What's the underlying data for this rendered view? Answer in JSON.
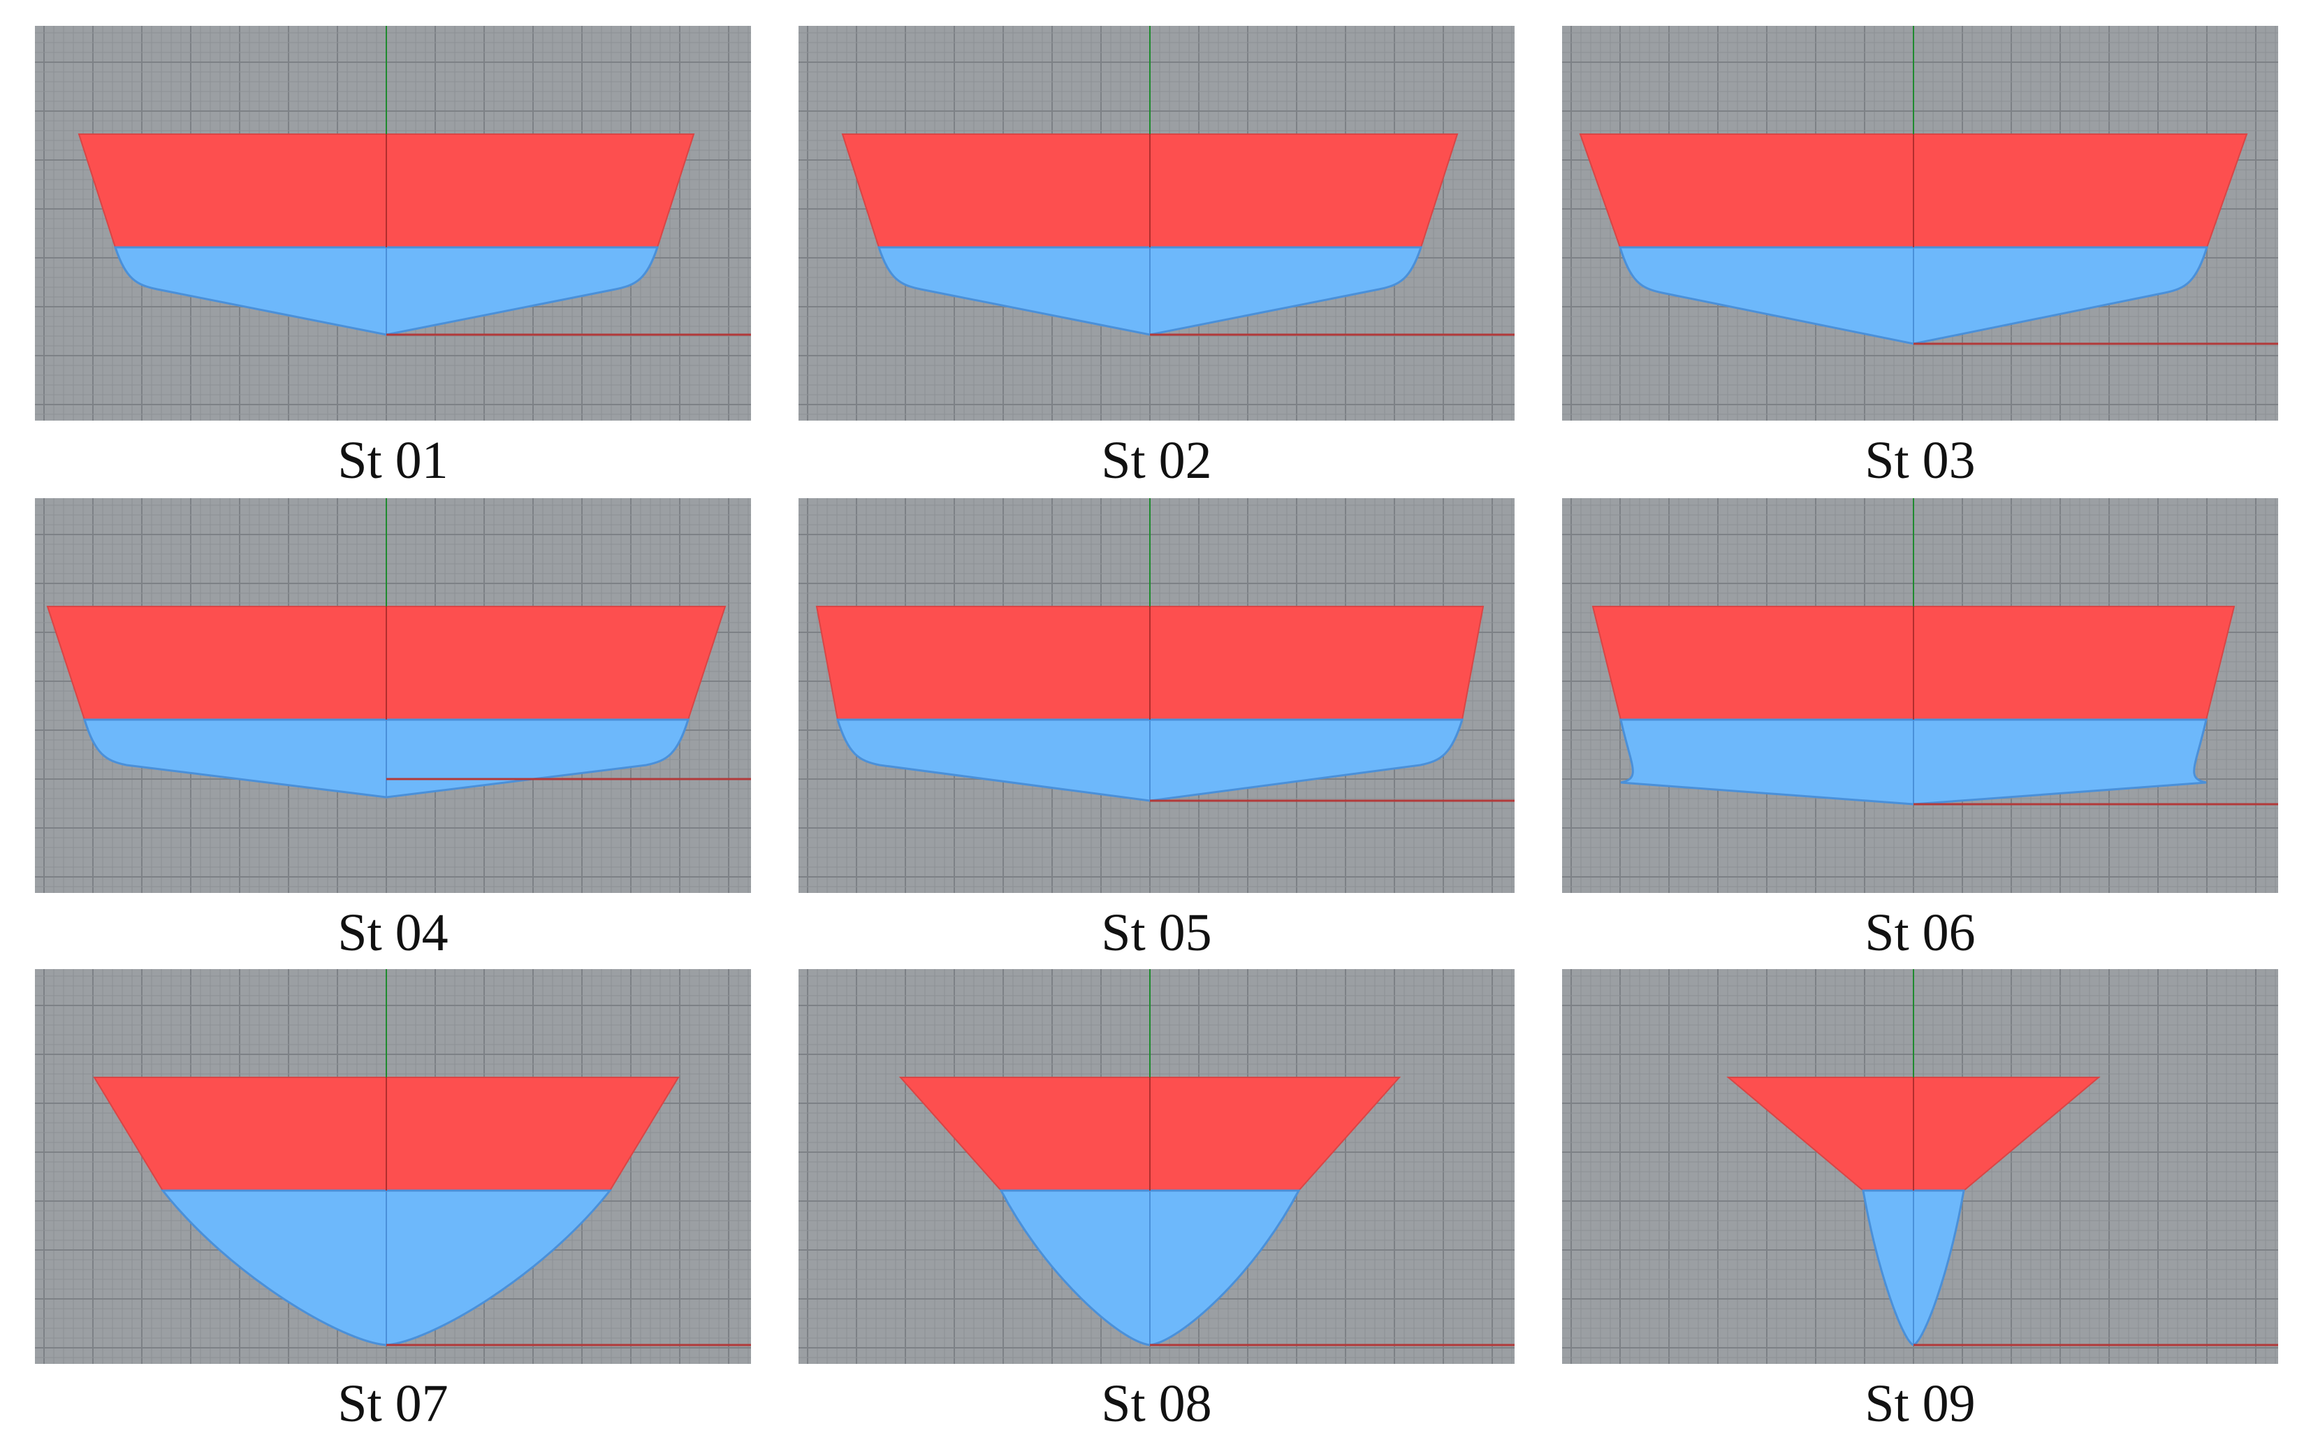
{
  "colors": {
    "viewport_background": "#9b9fa3",
    "grid_minor": "#8d9196",
    "grid_major": "#7d8186",
    "above_waterline": "#fd4f4f",
    "below_waterline": "#6db8fb",
    "hull_outline": "#d94545",
    "underwater_outline": "#4a90d9",
    "y_axis": "#1f8a2f",
    "x_axis": "#b23a3a"
  },
  "stations": [
    {
      "label": "St 01",
      "shape": "flat"
    },
    {
      "label": "St 02",
      "shape": "flat"
    },
    {
      "label": "St 03",
      "shape": "flat"
    },
    {
      "label": "St 04",
      "shape": "flat"
    },
    {
      "label": "St 05",
      "shape": "flat"
    },
    {
      "label": "St 06",
      "shape": "v-shaped"
    },
    {
      "label": "St 07",
      "shape": "v-shaped"
    },
    {
      "label": "St 08",
      "shape": "v-shaped"
    },
    {
      "label": "St 09",
      "shape": "v-shaped"
    }
  ]
}
